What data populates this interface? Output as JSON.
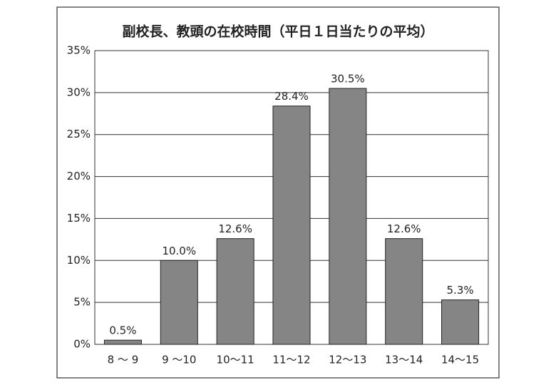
{
  "chart_data": {
    "type": "bar",
    "title": "副校長、教頭の在校時間（平日１日当たりの平均）",
    "categories": [
      "8 ～ 9",
      "9 ～10",
      "10～11",
      "11～12",
      "12～13",
      "13～14",
      "14～15"
    ],
    "values": [
      0.5,
      10.0,
      12.6,
      28.4,
      30.5,
      12.6,
      5.3
    ],
    "value_labels": [
      "0.5%",
      "10.0%",
      "12.6%",
      "28.4%",
      "30.5%",
      "12.6%",
      "5.3%"
    ],
    "color": "#858585",
    "ylim": [
      0,
      35
    ],
    "yticks": [
      {
        "value": 0,
        "label": "0%"
      },
      {
        "value": 5,
        "label": "5%"
      },
      {
        "value": 10,
        "label": "10%"
      },
      {
        "value": 15,
        "label": "15%"
      },
      {
        "value": 20,
        "label": "20%"
      },
      {
        "value": 25,
        "label": "25%"
      },
      {
        "value": 30,
        "label": "30%"
      },
      {
        "value": 35,
        "label": "35%"
      }
    ],
    "grid": true
  }
}
